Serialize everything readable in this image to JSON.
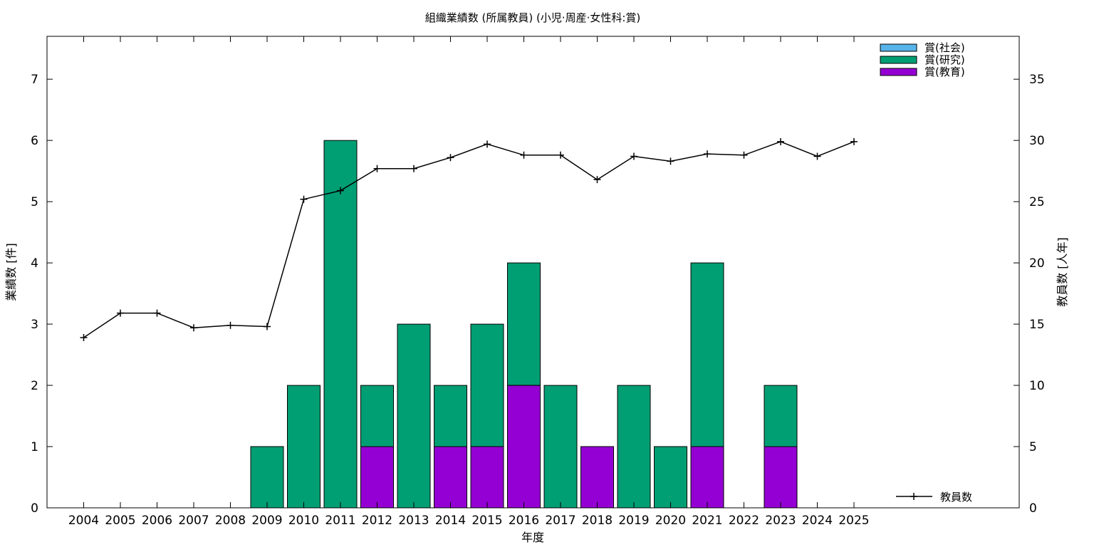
{
  "chart_data": {
    "type": "bar",
    "title": "組織業績数 (所属教員) (小児·周産·女性科:賞)",
    "xlabel": "年度",
    "ylabel": "業績数 [件]",
    "y2label": "教員数 [人年]",
    "categories": [
      "2004",
      "2005",
      "2006",
      "2007",
      "2008",
      "2009",
      "2010",
      "2011",
      "2012",
      "2013",
      "2014",
      "2015",
      "2016",
      "2017",
      "2018",
      "2019",
      "2020",
      "2021",
      "2022",
      "2023",
      "2024",
      "2025"
    ],
    "ylim": [
      0,
      7.7
    ],
    "yticks": [
      0,
      1,
      2,
      3,
      4,
      5,
      6,
      7
    ],
    "y2lim": [
      0,
      38.5
    ],
    "y2ticks": [
      0,
      5,
      10,
      15,
      20,
      25,
      30,
      35
    ],
    "stacked": true,
    "series": [
      {
        "name": "賞(教育)",
        "color": "#9400d3",
        "values": [
          0,
          0,
          0,
          0,
          0,
          0,
          0,
          0,
          1,
          0,
          1,
          1,
          2,
          0,
          1,
          0,
          0,
          1,
          0,
          1,
          0,
          0
        ]
      },
      {
        "name": "賞(研究)",
        "color": "#009e73",
        "values": [
          0,
          0,
          0,
          0,
          0,
          1,
          2,
          6,
          1,
          3,
          1,
          2,
          2,
          2,
          0,
          2,
          1,
          3,
          0,
          1,
          0,
          0
        ]
      },
      {
        "name": "賞(社会)",
        "color": "#56b4e9",
        "values": [
          0,
          0,
          0,
          0,
          0,
          0,
          0,
          0,
          0,
          0,
          0,
          0,
          0,
          0,
          0,
          0,
          0,
          0,
          0,
          0,
          0,
          0
        ]
      }
    ],
    "line_series": {
      "name": "教員数",
      "axis": "y2",
      "color": "#000000",
      "values": [
        13.9,
        15.9,
        15.9,
        14.7,
        14.9,
        14.8,
        25.2,
        25.9,
        27.7,
        27.7,
        28.6,
        29.7,
        28.8,
        28.8,
        26.8,
        28.7,
        28.3,
        28.9,
        28.8,
        29.9,
        28.7,
        29.9
      ]
    },
    "legend": [
      "賞(社会)",
      "賞(研究)",
      "賞(教育)"
    ],
    "legend_placement": "top-right",
    "line_legend_placement": "bottom-right",
    "grid": false
  }
}
